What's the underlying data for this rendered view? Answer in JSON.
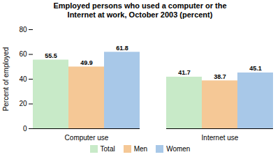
{
  "chart_data": {
    "type": "bar",
    "title": "Employed persons who used a computer or the\nInternet at work, October 2003 (percent)",
    "ylabel": "Percent of employed",
    "categories": [
      "Computer use",
      "Internet use"
    ],
    "series": [
      {
        "name": "Total",
        "color": "#c8eac8",
        "values": [
          55.5,
          41.7
        ]
      },
      {
        "name": "Men",
        "color": "#f5c896",
        "values": [
          49.9,
          38.7
        ]
      },
      {
        "name": "Women",
        "color": "#a8c8e8",
        "values": [
          61.8,
          45.1
        ]
      }
    ],
    "ylim": [
      0,
      80
    ],
    "yticks": [
      0,
      20,
      40,
      60,
      80
    ],
    "grid": false,
    "data_labels": true,
    "legend": "bottom"
  }
}
